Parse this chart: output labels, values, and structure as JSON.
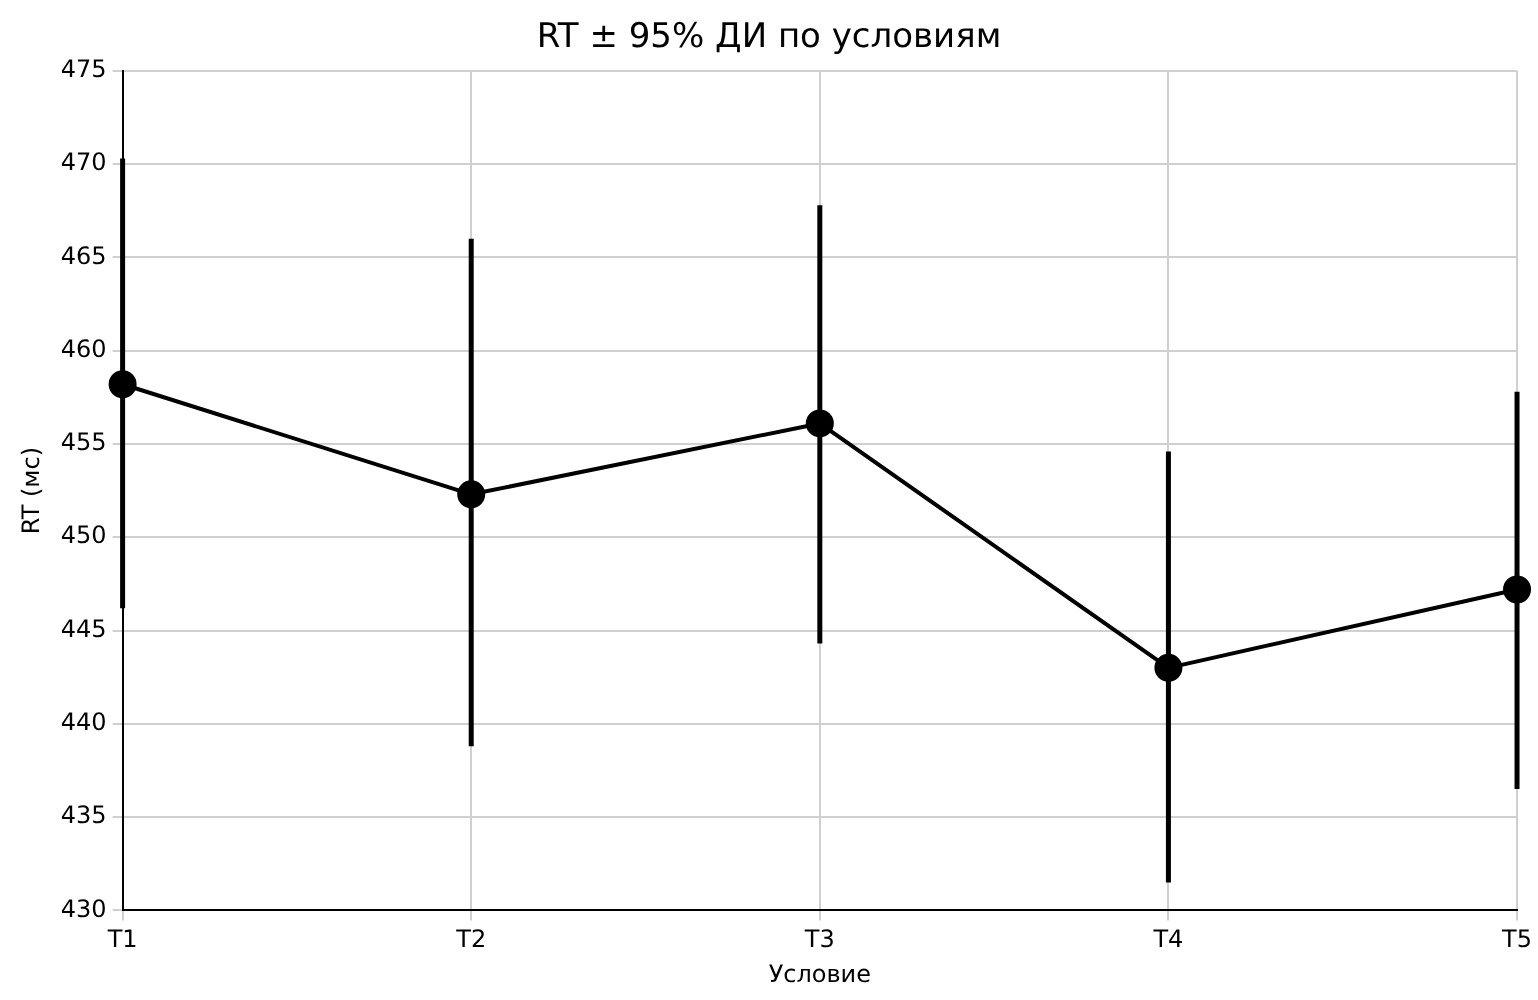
{
  "chart_data": {
    "type": "line",
    "title": "RT ± 95% ДИ по условиям",
    "xlabel": "Условие",
    "ylabel": "RT (мс)",
    "categories": [
      "T1",
      "T2",
      "T3",
      "T4",
      "T5"
    ],
    "series": [
      {
        "color": "#000000",
        "values": [
          458.2,
          452.3,
          456.1,
          443.0,
          447.2
        ],
        "errors": [
          [
            446.2,
            470.3
          ],
          [
            438.8,
            466.0
          ],
          [
            444.3,
            467.8
          ],
          [
            431.5,
            454.6
          ],
          [
            436.5,
            457.8
          ]
        ]
      }
    ],
    "ylim": [
      430,
      475
    ],
    "yticks": [
      430,
      435,
      440,
      445,
      450,
      455,
      460,
      465,
      470,
      475
    ],
    "grid": true,
    "legend": false,
    "marker": "circle",
    "line_style": "solid"
  }
}
